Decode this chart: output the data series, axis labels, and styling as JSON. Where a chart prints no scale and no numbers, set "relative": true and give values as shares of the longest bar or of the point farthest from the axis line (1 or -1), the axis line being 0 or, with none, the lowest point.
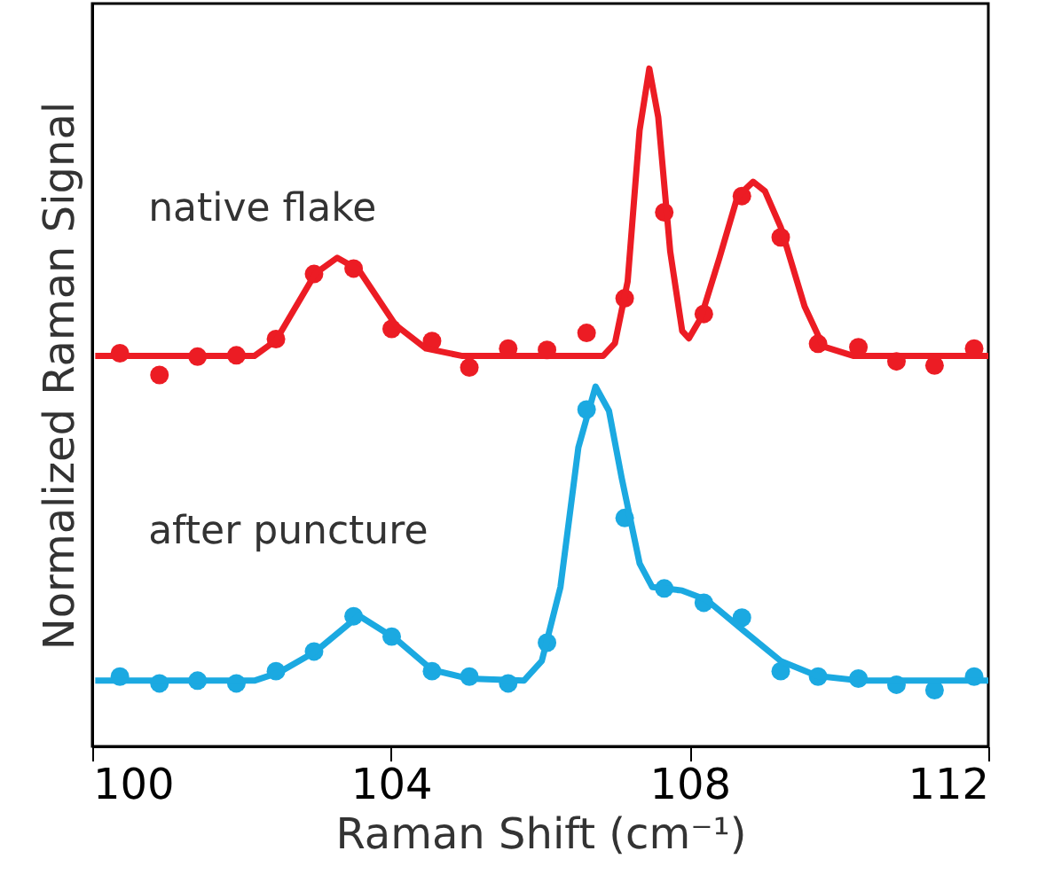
{
  "chart_data": {
    "type": "scatter",
    "relative": true,
    "xlabel": "Raman Shift (cm⁻¹)",
    "ylabel": "Normalized Raman Signal",
    "xlim": [
      100,
      112
    ],
    "xticks": [
      100,
      104,
      108,
      112
    ],
    "grid": false,
    "marker": "circle",
    "series": [
      {
        "name": "native flake",
        "color": "#ec1c24",
        "x": [
          100.37,
          100.9,
          101.41,
          101.93,
          102.46,
          102.97,
          103.5,
          104.01,
          104.55,
          105.05,
          105.57,
          106.09,
          106.62,
          107.13,
          107.66,
          108.19,
          108.7,
          109.22,
          109.72,
          110.26,
          110.77,
          111.28,
          111.81
        ],
        "values": [
          0.58,
          0.548,
          0.575,
          0.577,
          0.601,
          0.697,
          0.705,
          0.616,
          0.598,
          0.559,
          0.587,
          0.585,
          0.61,
          0.661,
          0.788,
          0.638,
          0.812,
          0.751,
          0.594,
          0.589,
          0.568,
          0.562,
          0.587
        ]
      },
      {
        "name": "after puncture",
        "color": "#1ba9e1",
        "x": [
          100.37,
          100.9,
          101.41,
          101.93,
          102.46,
          102.97,
          103.5,
          104.01,
          104.55,
          105.05,
          105.57,
          106.09,
          106.62,
          107.13,
          107.66,
          108.19,
          108.7,
          109.22,
          109.72,
          110.26,
          110.77,
          111.28,
          111.81
        ],
        "values": [
          0.103,
          0.093,
          0.097,
          0.093,
          0.111,
          0.14,
          0.192,
          0.162,
          0.111,
          0.103,
          0.093,
          0.153,
          0.497,
          0.337,
          0.233,
          0.212,
          0.19,
          0.111,
          0.103,
          0.1,
          0.091,
          0.083,
          0.103
        ]
      },
      {
        "color": "#ec1c24",
        "type": "line",
        "marker": "none",
        "line_style": "solid",
        "x": [
          100.04,
          102.17,
          102.46,
          102.99,
          103.28,
          103.57,
          104.06,
          104.47,
          104.96,
          106.84,
          107.0,
          107.17,
          107.33,
          107.46,
          107.58,
          107.74,
          107.9,
          107.99,
          108.15,
          108.4,
          108.64,
          108.85,
          109.01,
          109.22,
          109.54,
          109.79,
          110.2,
          112.0
        ],
        "values": [
          0.576,
          0.576,
          0.599,
          0.698,
          0.721,
          0.703,
          0.622,
          0.587,
          0.576,
          0.576,
          0.595,
          0.686,
          0.909,
          1.0,
          0.928,
          0.73,
          0.613,
          0.602,
          0.632,
          0.721,
          0.811,
          0.833,
          0.819,
          0.766,
          0.649,
          0.59,
          0.576,
          0.576
        ]
      },
      {
        "color": "#1ba9e1",
        "type": "line",
        "marker": "none",
        "line_style": "solid",
        "x": [
          100.04,
          102.17,
          102.5,
          102.99,
          103.57,
          104.06,
          104.55,
          105.04,
          105.78,
          106.02,
          106.27,
          106.51,
          106.74,
          106.92,
          107.09,
          107.33,
          107.5,
          107.9,
          108.23,
          108.72,
          109.22,
          109.71,
          110.28,
          112.0
        ],
        "values": [
          0.097,
          0.097,
          0.109,
          0.14,
          0.193,
          0.159,
          0.113,
          0.1,
          0.097,
          0.126,
          0.235,
          0.441,
          0.531,
          0.495,
          0.396,
          0.27,
          0.235,
          0.23,
          0.216,
          0.171,
          0.126,
          0.104,
          0.097,
          0.097
        ]
      }
    ]
  }
}
